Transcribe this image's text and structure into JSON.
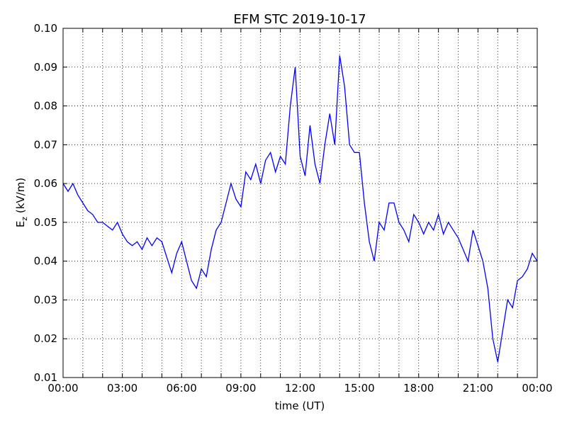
{
  "chart_data": {
    "type": "line",
    "title": "EFM STC    2019-10-17",
    "xlabel": "time (UT)",
    "ylabel": {
      "base": "E",
      "sub": "z",
      "unit": " (kV/m)"
    },
    "x": [
      0,
      0.25,
      0.5,
      0.75,
      1,
      1.25,
      1.5,
      1.75,
      2,
      2.25,
      2.5,
      2.75,
      3,
      3.25,
      3.5,
      3.75,
      4,
      4.25,
      4.5,
      4.75,
      5,
      5.25,
      5.5,
      5.75,
      6,
      6.25,
      6.5,
      6.75,
      7,
      7.25,
      7.5,
      7.75,
      8,
      8.25,
      8.5,
      8.75,
      9,
      9.25,
      9.5,
      9.75,
      10,
      10.25,
      10.5,
      10.75,
      11,
      11.25,
      11.5,
      11.75,
      12,
      12.25,
      12.5,
      12.75,
      13,
      13.25,
      13.5,
      13.75,
      14,
      14.25,
      14.5,
      14.75,
      15,
      15.25,
      15.5,
      15.75,
      16,
      16.25,
      16.5,
      16.75,
      17,
      17.25,
      17.5,
      17.75,
      18,
      18.25,
      18.5,
      18.75,
      19,
      19.25,
      19.5,
      19.75,
      20,
      20.25,
      20.5,
      20.75,
      21,
      21.25,
      21.5,
      21.75,
      22,
      22.25,
      22.5,
      22.75,
      23,
      23.25,
      23.5,
      23.75,
      24
    ],
    "series": [
      {
        "name": "Ez",
        "color": "#0000ff",
        "values": [
          0.06,
          0.058,
          0.06,
          0.057,
          0.055,
          0.053,
          0.052,
          0.05,
          0.05,
          0.049,
          0.048,
          0.05,
          0.047,
          0.045,
          0.044,
          0.045,
          0.043,
          0.046,
          0.044,
          0.046,
          0.045,
          0.041,
          0.037,
          0.042,
          0.045,
          0.04,
          0.035,
          0.033,
          0.038,
          0.036,
          0.043,
          0.048,
          0.05,
          0.055,
          0.06,
          0.056,
          0.054,
          0.063,
          0.061,
          0.065,
          0.06,
          0.066,
          0.068,
          0.063,
          0.067,
          0.065,
          0.08,
          0.09,
          0.067,
          0.062,
          0.075,
          0.065,
          0.06,
          0.07,
          0.078,
          0.07,
          0.093,
          0.085,
          0.07,
          0.068,
          0.068,
          0.055,
          0.045,
          0.04,
          0.05,
          0.048,
          0.055,
          0.055,
          0.05,
          0.048,
          0.045,
          0.052,
          0.05,
          0.047,
          0.05,
          0.048,
          0.052,
          0.047,
          0.05,
          0.048,
          0.046,
          0.043,
          0.04,
          0.048,
          0.044,
          0.04,
          0.033,
          0.02,
          0.014,
          0.022,
          0.03,
          0.028,
          0.035,
          0.036,
          0.038,
          0.042,
          0.04
        ]
      }
    ],
    "xlim": [
      0,
      24
    ],
    "xticks": [
      {
        "value": 0,
        "label": "00:00"
      },
      {
        "value": 3,
        "label": "03:00"
      },
      {
        "value": 6,
        "label": "06:00"
      },
      {
        "value": 9,
        "label": "09:00"
      },
      {
        "value": 12,
        "label": "12:00"
      },
      {
        "value": 15,
        "label": "15:00"
      },
      {
        "value": 18,
        "label": "18:00"
      },
      {
        "value": 21,
        "label": "21:00"
      },
      {
        "value": 24,
        "label": "00:00"
      }
    ],
    "xminorticks": [
      1,
      2,
      4,
      5,
      7,
      8,
      10,
      11,
      13,
      14,
      16,
      17,
      19,
      20,
      22,
      23
    ],
    "ylim": [
      0.01,
      0.1
    ],
    "yticks": [
      0.01,
      0.02,
      0.03,
      0.04,
      0.05,
      0.06,
      0.07,
      0.08,
      0.09,
      {
        "value": 0.1,
        "label": "0.10"
      }
    ],
    "grid": true
  }
}
